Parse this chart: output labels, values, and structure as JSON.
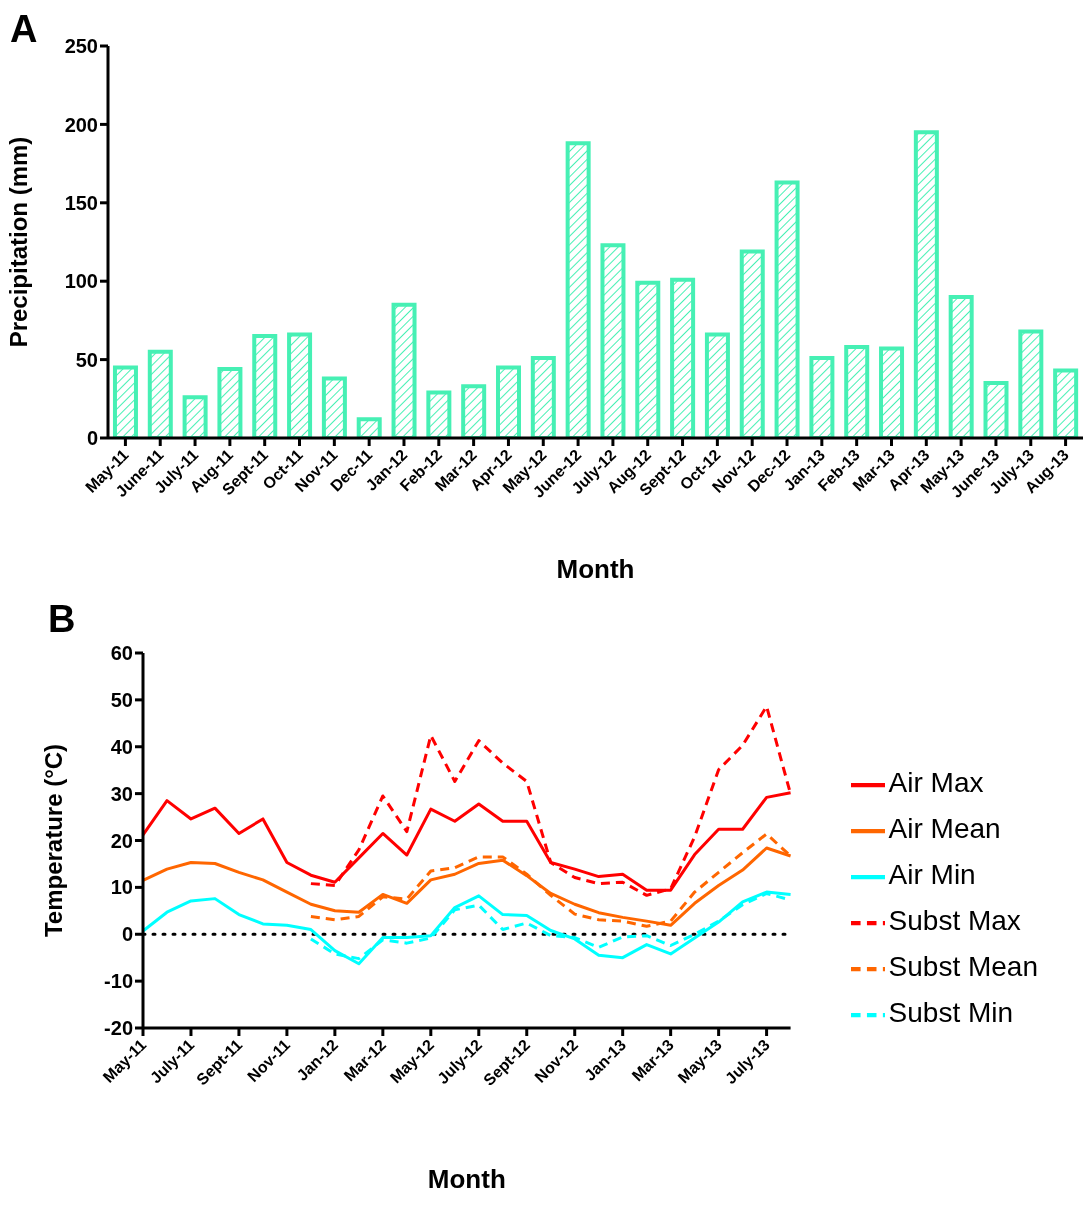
{
  "chart_data": [
    {
      "type": "bar",
      "annotations": [
        "A"
      ],
      "xlabel": "Month",
      "ylabel": "Precipitation (mm)",
      "categories": [
        "May-11",
        "June-11",
        "July-11",
        "Aug-11",
        "Sept-11",
        "Oct-11",
        "Nov-11",
        "Dec-11",
        "Jan-12",
        "Feb-12",
        "Mar-12",
        "Apr-12",
        "May-12",
        "June-12",
        "July-12",
        "Aug-12",
        "Sept-12",
        "Oct-12",
        "Nov-12",
        "Dec-12",
        "Jan-13",
        "Feb-13",
        "Mar-13",
        "Apr-13",
        "May-13",
        "June-13",
        "July-13",
        "Aug-13"
      ],
      "values": [
        45,
        55,
        26,
        44,
        65,
        66,
        38,
        12,
        85,
        29,
        33,
        45,
        51,
        188,
        123,
        99,
        101,
        66,
        119,
        163,
        51,
        58,
        57,
        195,
        90,
        35,
        68,
        43
      ],
      "color": "#46f0b4",
      "ylim": [
        0,
        250
      ],
      "yticks": [
        0,
        50,
        100,
        150,
        200,
        250
      ],
      "grid": false,
      "legend": false
    },
    {
      "type": "line",
      "annotations": [
        "B"
      ],
      "xlabel": "Month",
      "ylabel": "Temperature (°C)",
      "categories": [
        "May-11",
        null,
        "July-11",
        null,
        "Sept-11",
        null,
        "Nov-11",
        null,
        "Jan-12",
        null,
        "Mar-12",
        null,
        "May-12",
        null,
        "July-12",
        null,
        "Sept-12",
        null,
        "Nov-12",
        null,
        "Jan-13",
        null,
        "Mar-13",
        null,
        "May-13",
        null,
        "July-13",
        null
      ],
      "series": [
        {
          "name": "Air Mean",
          "color": "#ff6600",
          "line_style": "solid",
          "values": [
            11.5,
            13.9,
            15.3,
            15.1,
            13.2,
            11.6,
            9.0,
            6.4,
            5.0,
            4.7,
            8.5,
            6.6,
            11.6,
            12.8,
            15.1,
            15.8,
            12.5,
            8.7,
            6.4,
            4.6,
            3.6,
            2.8,
            1.9,
            6.6,
            10.4,
            13.7,
            18.4,
            16.7
          ]
        },
        {
          "name": "Subst Mean",
          "color": "#ff6600",
          "line_style": "dashed",
          "values": [
            null,
            null,
            null,
            null,
            null,
            null,
            null,
            3.8,
            3.1,
            3.8,
            8.0,
            7.5,
            13.5,
            14.2,
            16.5,
            16.5,
            12.8,
            8.3,
            4.3,
            3.1,
            2.8,
            1.7,
            2.8,
            9.0,
            13.2,
            17.4,
            21.4,
            16.7
          ]
        },
        {
          "name": "Air Max",
          "color": "#ff0000",
          "line_style": "solid",
          "values": [
            21.2,
            28.5,
            24.6,
            26.9,
            21.5,
            24.6,
            15.3,
            12.6,
            11.1,
            16.3,
            21.5,
            16.9,
            26.7,
            24.1,
            27.8,
            24.1,
            24.1,
            15.3,
            13.9,
            12.3,
            12.8,
            9.4,
            9.4,
            17.0,
            22.4,
            22.4,
            29.2,
            30.2
          ]
        },
        {
          "name": "Subst Max",
          "color": "#ff0000",
          "line_style": "dashed",
          "values": [
            null,
            null,
            null,
            null,
            null,
            null,
            null,
            10.8,
            10.4,
            18,
            29.5,
            21.9,
            42.4,
            32.6,
            41.3,
            36.5,
            32.6,
            15.3,
            12.1,
            10.8,
            11.1,
            8.3,
            9.7,
            20.8,
            35.1,
            40.3,
            48.6,
            29.9
          ]
        },
        {
          "name": "Air Min",
          "color": "#00ffff",
          "line_style": "solid",
          "values": [
            0.7,
            4.7,
            7.1,
            7.6,
            4.2,
            2.2,
            1.9,
            1.0,
            -3.5,
            -6.3,
            -0.7,
            -0.7,
            -0.3,
            5.7,
            8.2,
            4.2,
            4.0,
            0.8,
            -1.0,
            -4.5,
            -5.0,
            -2.2,
            -4.2,
            -0.8,
            2.6,
            6.9,
            9.0,
            8.5
          ]
        },
        {
          "name": "Subst Min",
          "color": "#00ffff",
          "line_style": "dashed",
          "values": [
            null,
            null,
            null,
            null,
            null,
            null,
            null,
            -1.0,
            -4.2,
            -5.2,
            -1.2,
            -1.9,
            -0.8,
            5.2,
            6.2,
            1.0,
            2.4,
            -0.3,
            -0.7,
            -2.8,
            -0.6,
            -0.3,
            -2.4,
            0,
            2.8,
            6.3,
            8.7,
            7.3
          ]
        }
      ],
      "ylim": [
        -20,
        60
      ],
      "yticks": [
        -20,
        -10,
        0,
        10,
        20,
        30,
        40,
        50,
        60
      ],
      "grid": false,
      "legend": "right",
      "ref_lines": [
        {
          "axis": "y",
          "value": 0,
          "color": "#000000",
          "line_style": "dotted"
        }
      ]
    }
  ]
}
